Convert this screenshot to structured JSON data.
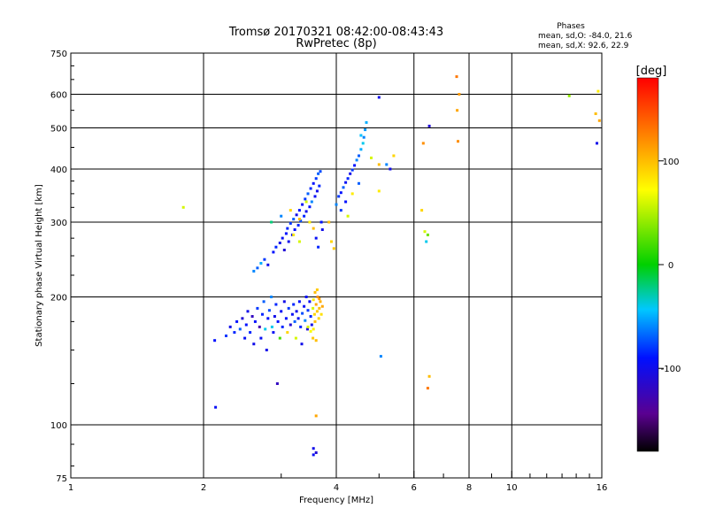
{
  "title": {
    "line1": "Tromsø 20170321 08:42:00-08:43:43",
    "line2": "RwPretec (8p)"
  },
  "stats": {
    "heading": "Phases",
    "o_mode": "mean, sd,O:  -84.0, 21.6",
    "x_mode": "mean, sd,X:  92.6, 22.9"
  },
  "colorbar": {
    "unit": "[deg]",
    "range": [
      -180,
      180
    ],
    "ticks": [
      {
        "value": 100,
        "label": "100"
      },
      {
        "value": 0,
        "label": "0"
      },
      {
        "value": -100,
        "label": "-100"
      }
    ]
  },
  "chart_data": {
    "type": "scatter",
    "title": "Tromsø 20170321 08:42:00-08:43:43",
    "subtitle": "RwPretec (8p)",
    "xlabel": "Frequency [MHz]",
    "ylabel": "Stationary phase Virtual Height [km]",
    "xscale": "log",
    "yscale": "log",
    "xlim": [
      1,
      16
    ],
    "ylim": [
      75,
      750
    ],
    "grid": true,
    "x_ticks": [
      {
        "value": 1,
        "label": "1"
      },
      {
        "value": 2,
        "label": "2"
      },
      {
        "value": 4,
        "label": "4"
      },
      {
        "value": 6,
        "label": "6"
      },
      {
        "value": 8,
        "label": "8"
      },
      {
        "value": 10,
        "label": "10"
      },
      {
        "value": 16,
        "label": "16"
      }
    ],
    "y_ticks": [
      {
        "value": 75,
        "label": "75"
      },
      {
        "value": 100,
        "label": "100"
      },
      {
        "value": 200,
        "label": "200"
      },
      {
        "value": 300,
        "label": "300"
      },
      {
        "value": 400,
        "label": "400"
      },
      {
        "value": 500,
        "label": "500"
      },
      {
        "value": 600,
        "label": "600"
      },
      {
        "value": 750,
        "label": "750"
      }
    ],
    "x_grid": [
      2,
      4,
      6,
      8,
      10
    ],
    "y_grid": [
      100,
      200,
      300,
      400,
      500,
      600
    ],
    "color_variable": "phase [deg]",
    "points": [
      [
        1.8,
        325,
        60
      ],
      [
        2.12,
        158,
        -90
      ],
      [
        2.13,
        110,
        -95
      ],
      [
        2.25,
        162,
        -80
      ],
      [
        2.3,
        170,
        -100
      ],
      [
        2.35,
        165,
        -85
      ],
      [
        2.38,
        175,
        -90
      ],
      [
        2.42,
        168,
        -70
      ],
      [
        2.45,
        178,
        -110
      ],
      [
        2.48,
        160,
        -95
      ],
      [
        2.5,
        172,
        -90
      ],
      [
        2.52,
        185,
        -100
      ],
      [
        2.55,
        165,
        -85
      ],
      [
        2.58,
        180,
        -120
      ],
      [
        2.6,
        155,
        -100
      ],
      [
        2.62,
        175,
        -90
      ],
      [
        2.65,
        188,
        -80
      ],
      [
        2.68,
        170,
        -130
      ],
      [
        2.7,
        160,
        -95
      ],
      [
        2.72,
        182,
        -85
      ],
      [
        2.74,
        195,
        -70
      ],
      [
        2.76,
        168,
        -40
      ],
      [
        2.78,
        150,
        -100
      ],
      [
        2.8,
        178,
        -90
      ],
      [
        2.82,
        186,
        -75
      ],
      [
        2.85,
        200,
        -60
      ],
      [
        2.86,
        170,
        -40
      ],
      [
        2.88,
        165,
        -95
      ],
      [
        2.9,
        180,
        -100
      ],
      [
        2.92,
        192,
        -85
      ],
      [
        2.94,
        125,
        -120
      ],
      [
        2.95,
        175,
        -90
      ],
      [
        2.98,
        160,
        20
      ],
      [
        3.0,
        185,
        -95
      ],
      [
        3.02,
        170,
        -85
      ],
      [
        3.05,
        195,
        -100
      ],
      [
        3.08,
        178,
        -90
      ],
      [
        3.1,
        165,
        90
      ],
      [
        3.12,
        188,
        -80
      ],
      [
        3.15,
        172,
        -110
      ],
      [
        3.18,
        182,
        -95
      ],
      [
        3.2,
        192,
        -85
      ],
      [
        3.22,
        175,
        -70
      ],
      [
        3.24,
        160,
        60
      ],
      [
        3.25,
        185,
        -100
      ],
      [
        3.28,
        178,
        -95
      ],
      [
        3.3,
        195,
        -90
      ],
      [
        3.32,
        170,
        -85
      ],
      [
        3.34,
        155,
        -100
      ],
      [
        3.35,
        183,
        -75
      ],
      [
        3.38,
        190,
        -95
      ],
      [
        3.4,
        176,
        -60
      ],
      [
        3.42,
        200,
        -90
      ],
      [
        3.44,
        168,
        -110
      ],
      [
        3.45,
        186,
        -80
      ],
      [
        3.48,
        195,
        -95
      ],
      [
        3.5,
        180,
        -85
      ],
      [
        3.52,
        172,
        -100
      ],
      [
        3.54,
        188,
        60
      ],
      [
        3.55,
        197,
        80
      ],
      [
        3.57,
        182,
        90
      ],
      [
        3.58,
        175,
        100
      ],
      [
        3.6,
        192,
        110
      ],
      [
        3.62,
        185,
        95
      ],
      [
        3.63,
        200,
        120
      ],
      [
        3.65,
        178,
        90
      ],
      [
        3.66,
        188,
        100
      ],
      [
        3.68,
        195,
        105
      ],
      [
        3.7,
        182,
        85
      ],
      [
        3.72,
        190,
        110
      ],
      [
        3.58,
        205,
        100
      ],
      [
        3.62,
        208,
        95
      ],
      [
        3.66,
        198,
        115
      ],
      [
        3.54,
        160,
        95
      ],
      [
        3.6,
        158,
        100
      ],
      [
        3.45,
        170,
        60
      ],
      [
        3.5,
        166,
        70
      ],
      [
        3.55,
        168,
        80
      ],
      [
        2.6,
        230,
        -60
      ],
      [
        2.65,
        234,
        -70
      ],
      [
        2.7,
        240,
        -50
      ],
      [
        2.75,
        245,
        -80
      ],
      [
        2.8,
        238,
        -100
      ],
      [
        2.88,
        255,
        -90
      ],
      [
        2.92,
        262,
        -85
      ],
      [
        2.98,
        268,
        -100
      ],
      [
        3.02,
        275,
        -95
      ],
      [
        3.05,
        258,
        -110
      ],
      [
        3.08,
        282,
        -90
      ],
      [
        3.1,
        290,
        -85
      ],
      [
        3.12,
        270,
        -100
      ],
      [
        3.15,
        298,
        -80
      ],
      [
        3.18,
        280,
        -95
      ],
      [
        3.2,
        305,
        -70
      ],
      [
        3.22,
        288,
        -90
      ],
      [
        3.25,
        312,
        -100
      ],
      [
        3.28,
        295,
        -85
      ],
      [
        3.3,
        320,
        -90
      ],
      [
        3.32,
        302,
        -75
      ],
      [
        3.35,
        330,
        -95
      ],
      [
        3.38,
        310,
        -85
      ],
      [
        3.4,
        340,
        -80
      ],
      [
        3.42,
        318,
        -100
      ],
      [
        3.45,
        350,
        -70
      ],
      [
        3.48,
        326,
        -90
      ],
      [
        3.5,
        360,
        -85
      ],
      [
        3.52,
        335,
        -60
      ],
      [
        3.55,
        370,
        -90
      ],
      [
        3.58,
        345,
        -95
      ],
      [
        3.6,
        380,
        -80
      ],
      [
        3.62,
        355,
        -100
      ],
      [
        3.64,
        390,
        -70
      ],
      [
        3.66,
        365,
        -85
      ],
      [
        3.68,
        395,
        -75
      ],
      [
        3.7,
        300,
        -90
      ],
      [
        3.72,
        288,
        -100
      ],
      [
        3.6,
        275,
        -95
      ],
      [
        3.64,
        262,
        -85
      ],
      [
        2.85,
        300,
        -20
      ],
      [
        3.0,
        310,
        -60
      ],
      [
        3.15,
        320,
        90
      ],
      [
        3.3,
        305,
        100
      ],
      [
        3.42,
        335,
        60
      ],
      [
        3.48,
        300,
        80
      ],
      [
        3.55,
        290,
        100
      ],
      [
        3.2,
        280,
        80
      ],
      [
        3.3,
        270,
        60
      ],
      [
        3.9,
        270,
        90
      ],
      [
        3.95,
        260,
        95
      ],
      [
        3.85,
        300,
        100
      ],
      [
        4.0,
        330,
        -60
      ],
      [
        4.05,
        345,
        -80
      ],
      [
        4.1,
        352,
        -90
      ],
      [
        4.15,
        362,
        -70
      ],
      [
        4.2,
        372,
        -95
      ],
      [
        4.25,
        380,
        -85
      ],
      [
        4.3,
        390,
        -100
      ],
      [
        4.35,
        398,
        -80
      ],
      [
        4.4,
        408,
        -90
      ],
      [
        4.45,
        420,
        -60
      ],
      [
        4.5,
        430,
        -70
      ],
      [
        4.55,
        445,
        -50
      ],
      [
        4.6,
        460,
        -40
      ],
      [
        4.62,
        475,
        -60
      ],
      [
        4.65,
        495,
        -55
      ],
      [
        4.68,
        515,
        -50
      ],
      [
        4.55,
        480,
        -45
      ],
      [
        4.1,
        320,
        -80
      ],
      [
        4.2,
        335,
        -90
      ],
      [
        4.25,
        310,
        60
      ],
      [
        4.35,
        350,
        80
      ],
      [
        4.5,
        370,
        -70
      ],
      [
        4.8,
        425,
        60
      ],
      [
        5.0,
        410,
        100
      ],
      [
        5.0,
        355,
        80
      ],
      [
        5.2,
        410,
        -60
      ],
      [
        5.3,
        400,
        -100
      ],
      [
        5.4,
        430,
        90
      ],
      [
        5.0,
        590,
        -100
      ],
      [
        5.05,
        145,
        -60
      ],
      [
        6.25,
        320,
        90
      ],
      [
        6.3,
        460,
        120
      ],
      [
        6.35,
        285,
        60
      ],
      [
        6.4,
        270,
        -40
      ],
      [
        6.45,
        280,
        30
      ],
      [
        6.5,
        130,
        100
      ],
      [
        6.45,
        122,
        130
      ],
      [
        6.5,
        505,
        -110
      ],
      [
        7.5,
        660,
        130
      ],
      [
        7.52,
        550,
        110
      ],
      [
        7.55,
        465,
        120
      ],
      [
        7.6,
        600,
        115
      ],
      [
        3.6,
        105,
        110
      ],
      [
        3.55,
        88,
        -100
      ],
      [
        3.6,
        86,
        -110
      ],
      [
        3.55,
        85,
        -95
      ],
      [
        13.5,
        595,
        40
      ],
      [
        15.5,
        540,
        100
      ],
      [
        15.6,
        460,
        -100
      ],
      [
        15.7,
        610,
        80
      ],
      [
        15.8,
        520,
        110
      ]
    ]
  }
}
